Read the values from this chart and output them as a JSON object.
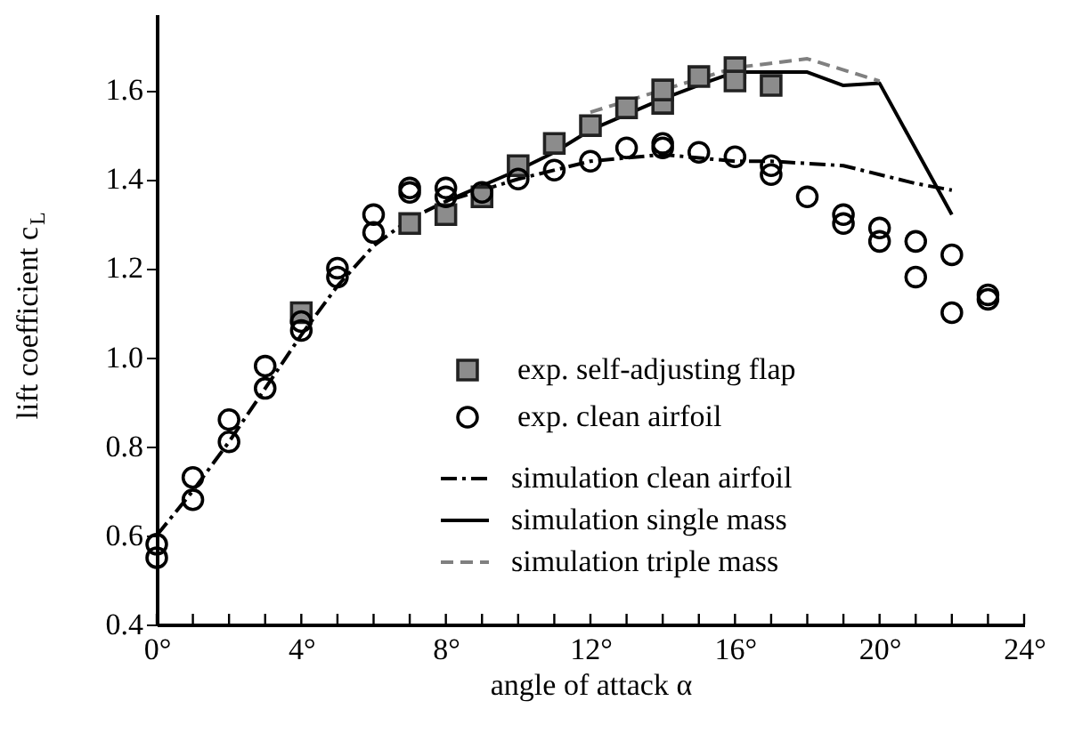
{
  "chart_data": {
    "type": "scatter",
    "xlabel": "angle of attack α",
    "ylabel": "lift coefficient c$_{L}$",
    "xlim": [
      0,
      24
    ],
    "ylim": [
      0.4,
      1.77
    ],
    "xticks": [
      {
        "value": 0,
        "label": "0°"
      },
      {
        "value": 1,
        "label": null
      },
      {
        "value": 2,
        "label": null
      },
      {
        "value": 3,
        "label": null
      },
      {
        "value": 4,
        "label": "4°"
      },
      {
        "value": 5,
        "label": null
      },
      {
        "value": 6,
        "label": null
      },
      {
        "value": 7,
        "label": null
      },
      {
        "value": 8,
        "label": "8°"
      },
      {
        "value": 9,
        "label": null
      },
      {
        "value": 10,
        "label": null
      },
      {
        "value": 11,
        "label": null
      },
      {
        "value": 12,
        "label": "12°"
      },
      {
        "value": 13,
        "label": null
      },
      {
        "value": 14,
        "label": null
      },
      {
        "value": 15,
        "label": null
      },
      {
        "value": 16,
        "label": "16°"
      },
      {
        "value": 17,
        "label": null
      },
      {
        "value": 18,
        "label": null
      },
      {
        "value": 19,
        "label": null
      },
      {
        "value": 20,
        "label": "20°"
      },
      {
        "value": 21,
        "label": null
      },
      {
        "value": 22,
        "label": null
      },
      {
        "value": 23,
        "label": null
      },
      {
        "value": 24,
        "label": "24°"
      }
    ],
    "yticks": [
      0.4,
      0.6,
      0.8,
      {
        "value": 1.0,
        "label": "1.0"
      },
      1.2,
      1.4,
      1.6
    ],
    "grid": false,
    "legend": "bottom right",
    "series": [
      {
        "name": "exp. self-adjusting flap",
        "marker": "square",
        "color": "#8c8c8c",
        "x": [
          4,
          7,
          8,
          9,
          10,
          11,
          12,
          13,
          14,
          14,
          15,
          16,
          16,
          17
        ],
        "values": [
          1.1,
          1.3,
          1.32,
          1.36,
          1.43,
          1.48,
          1.52,
          1.56,
          1.57,
          1.6,
          1.63,
          1.65,
          1.62,
          1.61
        ]
      },
      {
        "name": "exp. clean airfoil",
        "marker": "circle",
        "color": "#000000",
        "x": [
          0,
          0,
          1,
          1,
          2,
          2,
          3,
          3,
          4,
          4,
          5,
          5,
          6,
          6,
          7,
          7,
          8,
          8,
          9,
          10,
          11,
          12,
          13,
          14,
          14,
          15,
          16,
          17,
          17,
          18,
          19,
          19,
          20,
          20,
          21,
          21,
          22,
          22,
          23,
          23
        ],
        "values": [
          0.58,
          0.55,
          0.73,
          0.68,
          0.86,
          0.81,
          0.98,
          0.93,
          1.08,
          1.06,
          1.2,
          1.18,
          1.32,
          1.28,
          1.38,
          1.37,
          1.38,
          1.36,
          1.37,
          1.4,
          1.42,
          1.44,
          1.47,
          1.48,
          1.47,
          1.46,
          1.45,
          1.43,
          1.41,
          1.36,
          1.32,
          1.3,
          1.29,
          1.26,
          1.26,
          1.18,
          1.23,
          1.1,
          1.14,
          1.13
        ]
      },
      {
        "name": "simulation clean airfoil",
        "type": "line",
        "line_style": "dashdot",
        "color": "#000000",
        "x": [
          0,
          1,
          2,
          3,
          4,
          5,
          6,
          7,
          8,
          10,
          12,
          14,
          16,
          17,
          19,
          21,
          22
        ],
        "values": [
          0.6,
          0.7,
          0.81,
          0.93,
          1.05,
          1.16,
          1.25,
          1.31,
          1.35,
          1.4,
          1.44,
          1.455,
          1.44,
          1.44,
          1.43,
          1.39,
          1.375
        ]
      },
      {
        "name": "simulation single mass",
        "type": "line",
        "line_style": "solid",
        "color": "#000000",
        "x": [
          8,
          10,
          11,
          12,
          14,
          15.3,
          16,
          18,
          19,
          20,
          22
        ],
        "values": [
          1.35,
          1.42,
          1.46,
          1.51,
          1.58,
          1.62,
          1.64,
          1.64,
          1.61,
          1.615,
          1.32
        ]
      },
      {
        "name": "simulation triple mass",
        "type": "line",
        "line_style": "dashed",
        "color": "#808080",
        "x": [
          12,
          14,
          16,
          18,
          20
        ],
        "values": [
          1.55,
          1.6,
          1.65,
          1.67,
          1.62
        ]
      }
    ]
  }
}
